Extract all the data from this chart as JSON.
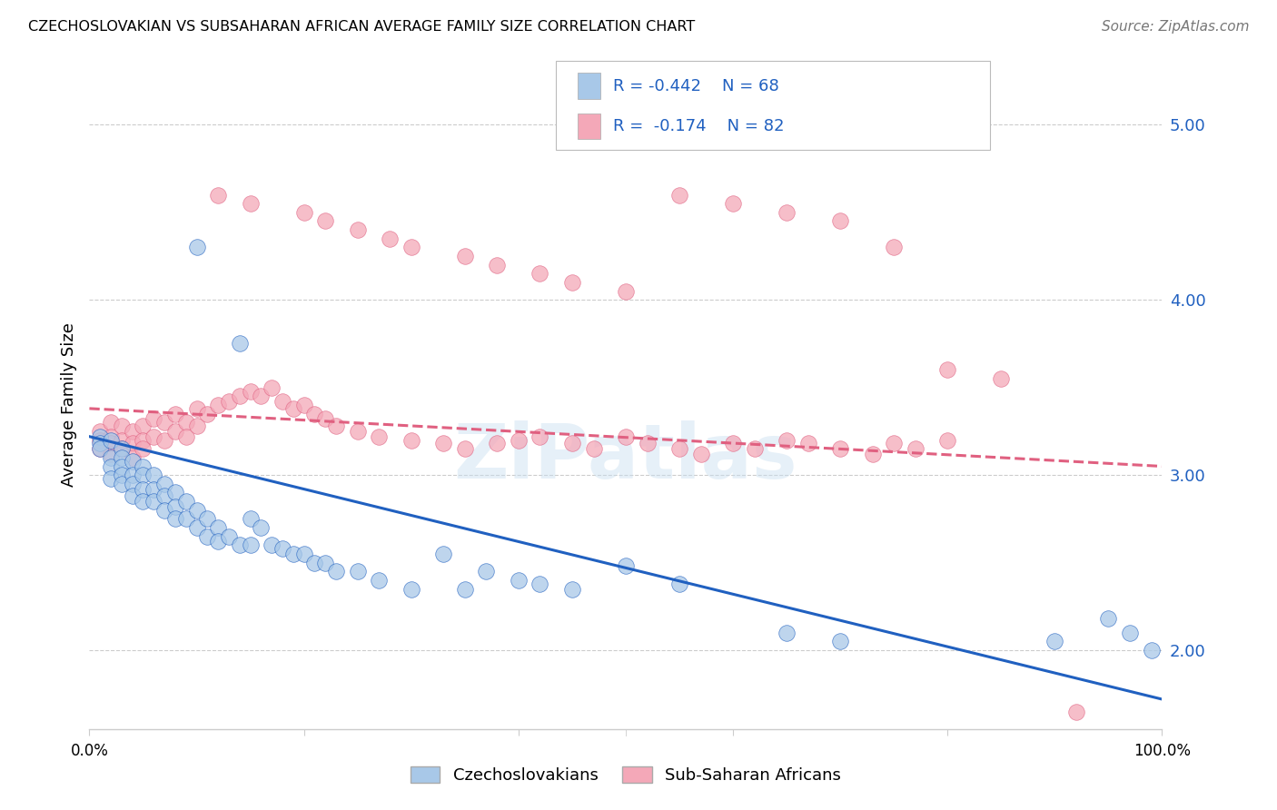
{
  "title": "CZECHOSLOVAKIAN VS SUBSAHARAN AFRICAN AVERAGE FAMILY SIZE CORRELATION CHART",
  "source": "Source: ZipAtlas.com",
  "ylabel": "Average Family Size",
  "yticks_right": [
    2.0,
    3.0,
    4.0,
    5.0
  ],
  "blue_R": -0.442,
  "blue_N": 68,
  "pink_R": -0.174,
  "pink_N": 82,
  "blue_color": "#a8c8e8",
  "pink_color": "#f4a8b8",
  "blue_line_color": "#2060c0",
  "pink_line_color": "#e06080",
  "watermark": "ZiPatlas",
  "blue_scatter_x": [
    1,
    1,
    1,
    2,
    2,
    2,
    2,
    3,
    3,
    3,
    3,
    3,
    4,
    4,
    4,
    4,
    5,
    5,
    5,
    5,
    6,
    6,
    6,
    7,
    7,
    7,
    8,
    8,
    8,
    9,
    9,
    10,
    10,
    11,
    11,
    12,
    12,
    13,
    14,
    15,
    15,
    16,
    17,
    18,
    19,
    20,
    21,
    22,
    23,
    25,
    27,
    30,
    33,
    35,
    37,
    40,
    42,
    45,
    50,
    55,
    65,
    70,
    90,
    95,
    97,
    99,
    10,
    14
  ],
  "blue_scatter_y": [
    3.22,
    3.18,
    3.15,
    3.2,
    3.1,
    3.05,
    2.98,
    3.15,
    3.1,
    3.05,
    3.0,
    2.95,
    3.08,
    3.0,
    2.95,
    2.88,
    3.05,
    3.0,
    2.92,
    2.85,
    3.0,
    2.92,
    2.85,
    2.95,
    2.88,
    2.8,
    2.9,
    2.82,
    2.75,
    2.85,
    2.75,
    2.8,
    2.7,
    2.75,
    2.65,
    2.7,
    2.62,
    2.65,
    2.6,
    2.75,
    2.6,
    2.7,
    2.6,
    2.58,
    2.55,
    2.55,
    2.5,
    2.5,
    2.45,
    2.45,
    2.4,
    2.35,
    2.55,
    2.35,
    2.45,
    2.4,
    2.38,
    2.35,
    2.48,
    2.38,
    2.1,
    2.05,
    2.05,
    2.18,
    2.1,
    2.0,
    4.3,
    3.75
  ],
  "pink_scatter_x": [
    1,
    1,
    1,
    2,
    2,
    2,
    2,
    3,
    3,
    3,
    4,
    4,
    4,
    5,
    5,
    5,
    6,
    6,
    7,
    7,
    8,
    8,
    9,
    9,
    10,
    10,
    11,
    12,
    13,
    14,
    15,
    16,
    17,
    18,
    19,
    20,
    21,
    22,
    23,
    25,
    27,
    30,
    33,
    35,
    38,
    40,
    42,
    45,
    47,
    50,
    52,
    55,
    57,
    60,
    62,
    65,
    67,
    70,
    73,
    75,
    77,
    80,
    12,
    15,
    20,
    22,
    25,
    28,
    30,
    35,
    38,
    42,
    45,
    50,
    55,
    60,
    65,
    70,
    75,
    80,
    85,
    92
  ],
  "pink_scatter_y": [
    3.25,
    3.2,
    3.15,
    3.3,
    3.22,
    3.18,
    3.12,
    3.28,
    3.2,
    3.15,
    3.25,
    3.18,
    3.1,
    3.28,
    3.2,
    3.15,
    3.32,
    3.22,
    3.3,
    3.2,
    3.35,
    3.25,
    3.3,
    3.22,
    3.38,
    3.28,
    3.35,
    3.4,
    3.42,
    3.45,
    3.48,
    3.45,
    3.5,
    3.42,
    3.38,
    3.4,
    3.35,
    3.32,
    3.28,
    3.25,
    3.22,
    3.2,
    3.18,
    3.15,
    3.18,
    3.2,
    3.22,
    3.18,
    3.15,
    3.22,
    3.18,
    3.15,
    3.12,
    3.18,
    3.15,
    3.2,
    3.18,
    3.15,
    3.12,
    3.18,
    3.15,
    3.2,
    4.6,
    4.55,
    4.5,
    4.45,
    4.4,
    4.35,
    4.3,
    4.25,
    4.2,
    4.15,
    4.1,
    4.05,
    4.6,
    4.55,
    4.5,
    4.45,
    4.3,
    3.6,
    3.55,
    1.65
  ],
  "xlim": [
    0,
    100
  ],
  "ylim_bottom": 1.55,
  "ylim_top": 5.25,
  "blue_trend_y_start": 3.22,
  "blue_trend_y_end": 1.72,
  "pink_trend_y_start": 3.38,
  "pink_trend_y_end": 3.05
}
